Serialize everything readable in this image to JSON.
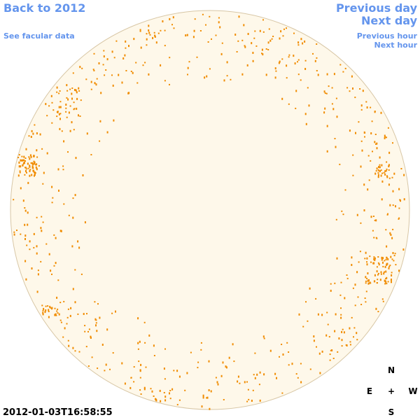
{
  "nav": {
    "back_year": "Back to 2012",
    "see_data": "See facular data",
    "previous_day": "Previous day",
    "next_day": "Next day",
    "previous_hour": "Previous hour",
    "next_hour": "Next hour"
  },
  "timestamp": "2012-01-03T16:58:55",
  "compass": {
    "north": "N",
    "east": "E",
    "center": "+",
    "west": "W",
    "south": "S"
  }
}
